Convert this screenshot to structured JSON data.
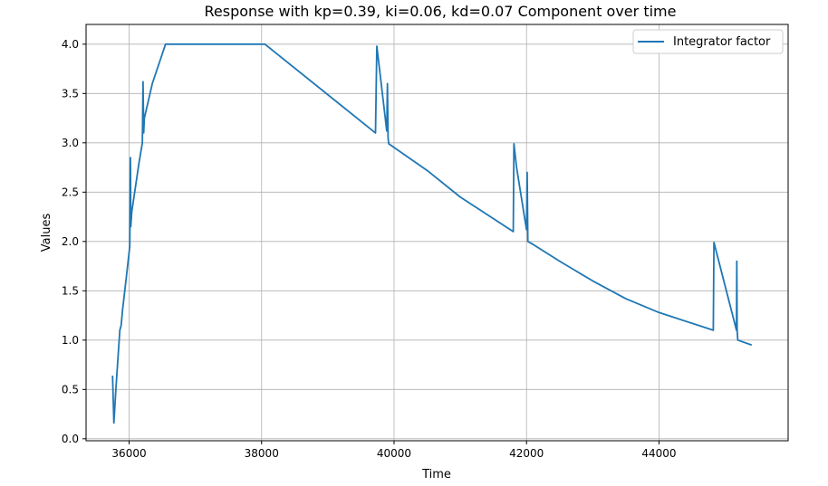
{
  "chart_data": {
    "type": "line",
    "title": "Response with kp=0.39, ki=0.06, kd=0.07 Component over time",
    "xlabel": "Time",
    "ylabel": "Values",
    "xlim": [
      35350,
      45950
    ],
    "ylim": [
      -0.02,
      4.2
    ],
    "xticks": [
      36000,
      38000,
      40000,
      42000,
      44000
    ],
    "yticks": [
      0.0,
      0.5,
      1.0,
      1.5,
      2.0,
      2.5,
      3.0,
      3.5,
      4.0
    ],
    "grid": true,
    "legend_position": "top-right",
    "series": [
      {
        "name": "Integrator factor",
        "color": "#1f77b4",
        "x": [
          35750,
          35770,
          35800,
          35830,
          35860,
          35880,
          35900,
          35960,
          36010,
          36020,
          36025,
          36040,
          36150,
          36200,
          36210,
          36220,
          36230,
          36350,
          36550,
          38050,
          39720,
          39740,
          39890,
          39900,
          39910,
          39920,
          40500,
          41000,
          41800,
          41810,
          41850,
          42000,
          42010,
          42020,
          42100,
          42500,
          43000,
          43500,
          44000,
          44820,
          44830,
          45170,
          45175,
          45180,
          45190,
          45400
        ],
        "y": [
          0.64,
          0.16,
          0.5,
          0.8,
          1.1,
          1.15,
          1.3,
          1.65,
          1.95,
          2.85,
          2.15,
          2.3,
          2.8,
          3.0,
          3.62,
          3.1,
          3.25,
          3.6,
          4.0,
          4.0,
          3.1,
          3.98,
          3.12,
          3.6,
          3.05,
          2.99,
          2.72,
          2.45,
          2.1,
          2.99,
          2.75,
          2.12,
          2.7,
          2.0,
          1.97,
          1.8,
          1.6,
          1.42,
          1.28,
          1.1,
          1.99,
          1.1,
          1.8,
          1.1,
          1.0,
          0.95
        ]
      }
    ]
  }
}
